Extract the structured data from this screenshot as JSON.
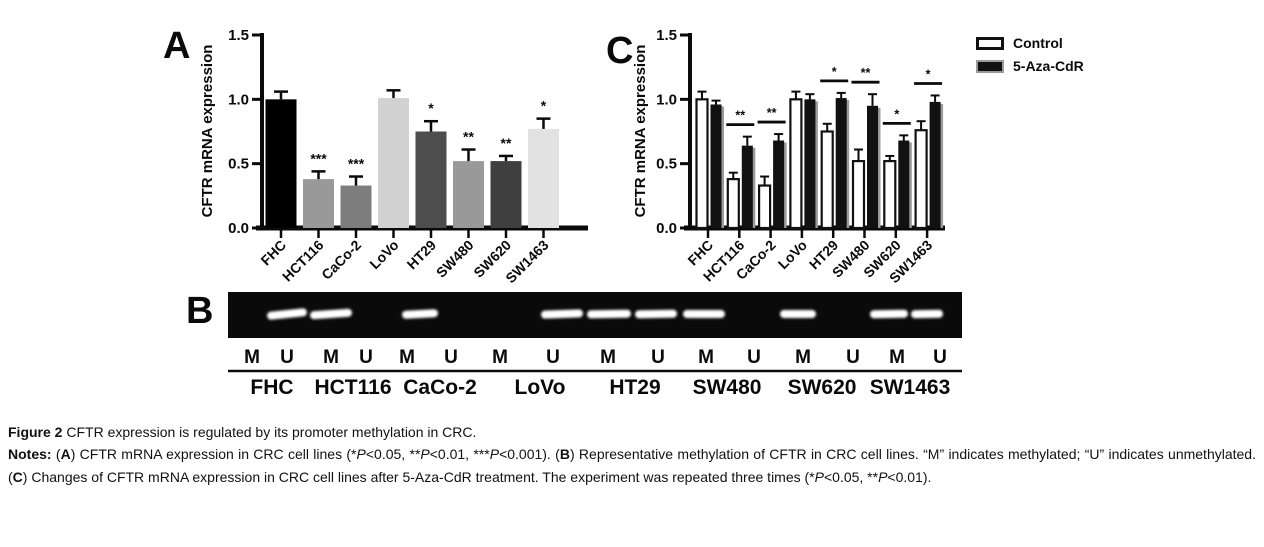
{
  "panels": {
    "a": "A",
    "b": "B",
    "c": "C"
  },
  "colors": {
    "text": "#0a0a0a",
    "axis": "#0a0a0a",
    "control_fill": "#ffffff",
    "aza_fill": "#111111",
    "aza_edge": "#9a9a9a",
    "gel_background": "#0a0a0a",
    "gel_band": "#ffffff"
  },
  "chart_data": [
    {
      "id": "A",
      "type": "bar",
      "title": "",
      "xlabel": "",
      "ylabel": "CFTR mRNA expression",
      "ylim": [
        0.0,
        1.5
      ],
      "yticks": [
        0.0,
        0.5,
        1.0,
        1.5
      ],
      "grid": false,
      "categories": [
        "FHC",
        "HCT116",
        "CaCo-2",
        "LoVo",
        "HT29",
        "SW480",
        "SW620",
        "SW1463"
      ],
      "values": [
        1.0,
        0.38,
        0.33,
        1.01,
        0.75,
        0.52,
        0.52,
        0.77
      ],
      "errors": [
        0.06,
        0.06,
        0.07,
        0.06,
        0.08,
        0.09,
        0.04,
        0.08
      ],
      "significance": [
        "",
        "***",
        "***",
        "",
        "*",
        "**",
        "**",
        "*"
      ],
      "bar_colors": [
        "#000000",
        "#999999",
        "#7d7d7d",
        "#d2d2d2",
        "#4d4d4d",
        "#999999",
        "#3f3f3f",
        "#e2e2e2"
      ]
    },
    {
      "id": "C",
      "type": "grouped-bar",
      "title": "",
      "xlabel": "",
      "ylabel": "CFTR mRNA expression",
      "ylim": [
        0.0,
        1.5
      ],
      "yticks": [
        0.0,
        0.5,
        1.0,
        1.5
      ],
      "grid": false,
      "legend_position": "top-right",
      "categories": [
        "FHC",
        "HCT116",
        "CaCo-2",
        "LoVo",
        "HT29",
        "SW480",
        "SW620",
        "SW1463"
      ],
      "series": [
        {
          "name": "Control",
          "values": [
            1.0,
            0.38,
            0.33,
            1.0,
            0.75,
            0.52,
            0.52,
            0.76
          ],
          "errors": [
            0.06,
            0.05,
            0.07,
            0.06,
            0.06,
            0.09,
            0.04,
            0.07
          ]
        },
        {
          "name": "5-Aza-CdR",
          "values": [
            0.96,
            0.64,
            0.68,
            1.0,
            1.01,
            0.95,
            0.68,
            0.98
          ],
          "errors": [
            0.03,
            0.07,
            0.05,
            0.04,
            0.04,
            0.09,
            0.04,
            0.05
          ]
        }
      ],
      "significance": [
        "",
        "**",
        "**",
        "",
        "*",
        "**",
        "*",
        "*"
      ]
    }
  ],
  "gel": {
    "lane_labels": [
      "M",
      "U",
      "M",
      "U",
      "M",
      "U",
      "M",
      "U",
      "M",
      "U",
      "M",
      "U",
      "M",
      "U",
      "M",
      "U"
    ],
    "cell_lines": [
      "FHC",
      "HCT116",
      "CaCo-2",
      "LoVo",
      "HT29",
      "SW480",
      "SW620",
      "SW1463"
    ],
    "bands": [
      {
        "line": "FHC",
        "lane": "U"
      },
      {
        "line": "HCT116",
        "lane": "M"
      },
      {
        "line": "CaCo-2",
        "lane": "M"
      },
      {
        "line": "LoVo",
        "lane": "U"
      },
      {
        "line": "HT29",
        "lane": "M"
      },
      {
        "line": "HT29",
        "lane": "U"
      },
      {
        "line": "SW480",
        "lane": "M"
      },
      {
        "line": "SW620",
        "lane": "M"
      },
      {
        "line": "SW1463",
        "lane": "M"
      },
      {
        "line": "SW1463",
        "lane": "U"
      }
    ]
  },
  "caption": {
    "paragraphs": [
      {
        "align": "left",
        "runs": [
          {
            "t": "Figure 2 ",
            "b": 1
          },
          {
            "t": "CFTR expression is regulated by its promoter methylation in CRC."
          }
        ]
      },
      {
        "align": "justify",
        "runs": [
          {
            "t": "Notes: ",
            "b": 1
          },
          {
            "t": "("
          },
          {
            "t": "A",
            "b": 1
          },
          {
            "t": ") CFTR mRNA expression in CRC cell lines (*"
          },
          {
            "t": "P",
            "i": 1
          },
          {
            "t": "<0.05, **"
          },
          {
            "t": "P",
            "i": 1
          },
          {
            "t": "<0.01, ***"
          },
          {
            "t": "P",
            "i": 1
          },
          {
            "t": "<0.001). ("
          },
          {
            "t": "B",
            "b": 1
          },
          {
            "t": ") Representative methylation of CFTR in CRC cell lines. “M” indicates methylated; “U” indicates unmethylated. ("
          },
          {
            "t": "C",
            "b": 1
          },
          {
            "t": ") Changes of CFTR mRNA expression in CRC cell lines after 5-Aza-CdR treatment. The experiment was repeated three times (*"
          },
          {
            "t": "P",
            "i": 1
          },
          {
            "t": "<0.05, **"
          },
          {
            "t": "P",
            "i": 1
          },
          {
            "t": "<0.01)."
          }
        ]
      }
    ]
  }
}
